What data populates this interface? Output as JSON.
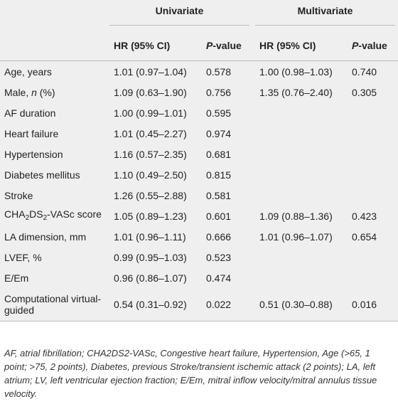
{
  "table": {
    "groups": [
      {
        "title": "Univariate",
        "hr_label": "HR (95% CI)",
        "p_label": [
          {
            "text": "P",
            "style": "italic"
          },
          "-value"
        ]
      },
      {
        "title": "Multivariate",
        "hr_label": "HR (95% CI)",
        "p_label": [
          {
            "text": "P",
            "style": "italic"
          },
          "-value"
        ]
      }
    ],
    "rows": [
      {
        "label": [
          "Age, years"
        ],
        "uni_hr": "1.01 (0.97–1.04)",
        "uni_p": "0.578",
        "multi_hr": "1.00 (0.98–1.03)",
        "multi_p": "0.740"
      },
      {
        "label": [
          "Male, ",
          {
            "text": "n",
            "style": "italic"
          },
          " (%)"
        ],
        "uni_hr": "1.09 (0.63–1.90)",
        "uni_p": "0.756",
        "multi_hr": "1.35 (0.76–2.40)",
        "multi_p": "0.305"
      },
      {
        "label": [
          "AF duration"
        ],
        "uni_hr": "1.00 (0.99–1.01)",
        "uni_p": "0.595",
        "multi_hr": null,
        "multi_p": null
      },
      {
        "label": [
          "Heart failure"
        ],
        "uni_hr": "1.01 (0.45–2.27)",
        "uni_p": "0.974",
        "multi_hr": null,
        "multi_p": null
      },
      {
        "label": [
          "Hypertension"
        ],
        "uni_hr": "1.16 (0.57–2.35)",
        "uni_p": "0.681",
        "multi_hr": null,
        "multi_p": null
      },
      {
        "label": [
          "Diabetes mellitus"
        ],
        "uni_hr": "1.10 (0.49–2.50)",
        "uni_p": "0.815",
        "multi_hr": null,
        "multi_p": null
      },
      {
        "label": [
          "Stroke"
        ],
        "uni_hr": "1.26 (0.55–2.88)",
        "uni_p": "0.581",
        "multi_hr": null,
        "multi_p": null
      },
      {
        "label": [
          "CHA",
          {
            "text": "2",
            "style": "sub"
          },
          "DS",
          {
            "text": "2",
            "style": "sub"
          },
          "-VASc score"
        ],
        "uni_hr": "1.05 (0.89–1.23)",
        "uni_p": "0.601",
        "multi_hr": "1.09 (0.88–1.36)",
        "multi_p": "0.423"
      },
      {
        "label": [
          "LA dimension, mm"
        ],
        "uni_hr": "1.01 (0.96–1.11)",
        "uni_p": "0.666",
        "multi_hr": "1.01 (0.96–1.07)",
        "multi_p": "0.654"
      },
      {
        "label": [
          "LVEF, %"
        ],
        "uni_hr": "0.99 (0.95–1.03)",
        "uni_p": "0.523",
        "multi_hr": null,
        "multi_p": null
      },
      {
        "label": [
          "E/Em"
        ],
        "uni_hr": "0.96 (0.86–1.07)",
        "uni_p": "0.474",
        "multi_hr": null,
        "multi_p": null
      },
      {
        "label": [
          "Computational virtual-guided"
        ],
        "uni_hr": "0.54 (0.31–0.92)",
        "uni_p": "0.022",
        "multi_hr": "0.51 (0.30–0.88)",
        "multi_p": "0.016"
      }
    ],
    "footnote": "AF, atrial fibrillation; CHA2DS2-VASc, Congestive heart failure, Hypertension, Age (>65, 1 point; >75, 2 points), Diabetes, previous Stroke/transient ischemic attack (2 points); LA, left atrium; LV, left ventricular ejection fraction; E/Em, mitral inflow velocity/mitral annulus tissue velocity."
  }
}
